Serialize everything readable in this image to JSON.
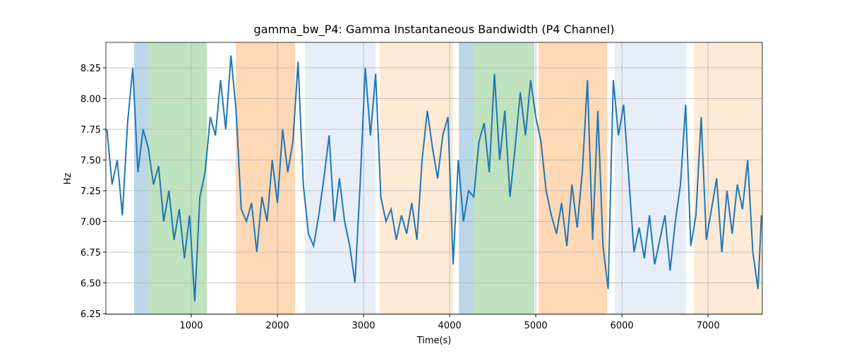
{
  "chart_data": {
    "type": "line",
    "title": "gamma_bw_P4: Gamma Instantaneous Bandwidth (P4 Channel)",
    "x_label": "Time(s)",
    "y_label": "Hz",
    "xlim": [
      8,
      7630
    ],
    "ylim": [
      6.244,
      8.457
    ],
    "xticks": [
      1000,
      2000,
      3000,
      4000,
      5000,
      6000,
      7000
    ],
    "yticks": [
      6.25,
      {
        "value": 6.5,
        "label": "6.50"
      },
      6.75,
      {
        "value": 7.0,
        "label": "7.00"
      },
      7.25,
      {
        "value": 7.5,
        "label": "7.50"
      },
      7.75,
      {
        "value": 8.0,
        "label": "8.00"
      },
      8.25
    ],
    "grid": true,
    "spans": [
      {
        "start": 336,
        "end": 500,
        "color": "#1f77b4",
        "opacity": 0.3
      },
      {
        "start": 500,
        "end": 1180,
        "color": "#2ca02c",
        "opacity": 0.3
      },
      {
        "start": 1516,
        "end": 2205,
        "color": "#ff7f0e",
        "opacity": 0.3
      },
      {
        "start": 2320,
        "end": 3139,
        "color": "#aec7e8",
        "opacity": 0.3
      },
      {
        "start": 3188,
        "end": 4041,
        "color": "#ffbb78",
        "opacity": 0.3
      },
      {
        "start": 4107,
        "end": 4270,
        "color": "#1f77b4",
        "opacity": 0.3
      },
      {
        "start": 4270,
        "end": 4983,
        "color": "#2ca02c",
        "opacity": 0.3
      },
      {
        "start": 5033,
        "end": 5828,
        "color": "#ff7f0e",
        "opacity": 0.3
      },
      {
        "start": 5918,
        "end": 6746,
        "color": "#aec7e8",
        "opacity": 0.3
      },
      {
        "start": 6836,
        "end": 7630,
        "color": "#ffbb78",
        "opacity": 0.3
      }
    ],
    "x": [
      20,
      80,
      140,
      200,
      260,
      320,
      380,
      440,
      500,
      560,
      620,
      680,
      740,
      800,
      860,
      920,
      980,
      1040,
      1100,
      1160,
      1220,
      1280,
      1340,
      1400,
      1460,
      1520,
      1580,
      1640,
      1700,
      1760,
      1820,
      1880,
      1940,
      2000,
      2060,
      2120,
      2180,
      2240,
      2300,
      2360,
      2420,
      2480,
      2540,
      2600,
      2660,
      2720,
      2780,
      2840,
      2900,
      2960,
      3020,
      3080,
      3140,
      3200,
      3260,
      3320,
      3380,
      3440,
      3500,
      3560,
      3620,
      3680,
      3740,
      3800,
      3860,
      3920,
      3980,
      4040,
      4100,
      4160,
      4220,
      4280,
      4340,
      4400,
      4460,
      4520,
      4580,
      4640,
      4700,
      4760,
      4820,
      4880,
      4940,
      5000,
      5060,
      5120,
      5180,
      5240,
      5300,
      5360,
      5420,
      5480,
      5540,
      5600,
      5660,
      5720,
      5780,
      5840,
      5900,
      5960,
      6020,
      6080,
      6140,
      6200,
      6260,
      6320,
      6380,
      6440,
      6500,
      6560,
      6620,
      6680,
      6740,
      6800,
      6860,
      6920,
      6980,
      7040,
      7100,
      7160,
      7220,
      7280,
      7340,
      7400,
      7460,
      7520,
      7580,
      7620
    ],
    "series": [
      {
        "color": "#1f77b4",
        "values": [
          7.75,
          7.3,
          7.5,
          7.05,
          7.8,
          8.25,
          7.4,
          7.75,
          7.6,
          7.3,
          7.45,
          7.0,
          7.25,
          6.85,
          7.1,
          6.7,
          7.05,
          6.35,
          7.2,
          7.4,
          7.85,
          7.7,
          8.15,
          7.75,
          8.35,
          7.9,
          7.1,
          7.0,
          7.15,
          6.75,
          7.2,
          7.0,
          7.5,
          7.15,
          7.75,
          7.4,
          7.65,
          8.3,
          7.3,
          6.9,
          6.8,
          7.05,
          7.35,
          7.7,
          7.0,
          7.35,
          7.0,
          6.8,
          6.5,
          7.3,
          8.25,
          7.7,
          8.2,
          7.2,
          7.0,
          7.1,
          6.85,
          7.05,
          6.9,
          7.15,
          6.85,
          7.5,
          7.9,
          7.6,
          7.35,
          7.7,
          7.85,
          6.65,
          7.5,
          7.0,
          7.25,
          7.2,
          7.65,
          7.8,
          7.4,
          8.2,
          7.5,
          7.9,
          7.2,
          7.6,
          8.05,
          7.7,
          8.15,
          7.85,
          7.65,
          7.25,
          7.05,
          6.9,
          7.15,
          6.8,
          7.3,
          6.95,
          7.4,
          8.15,
          6.85,
          7.9,
          6.8,
          6.45,
          8.15,
          7.7,
          7.95,
          7.35,
          6.75,
          6.95,
          6.7,
          7.05,
          6.65,
          6.85,
          7.05,
          6.6,
          7.0,
          7.3,
          7.95,
          6.8,
          7.05,
          7.85,
          6.85,
          7.1,
          7.35,
          6.75,
          7.25,
          6.9,
          7.3,
          7.1,
          7.5,
          6.75,
          6.45,
          7.05
        ]
      }
    ]
  }
}
